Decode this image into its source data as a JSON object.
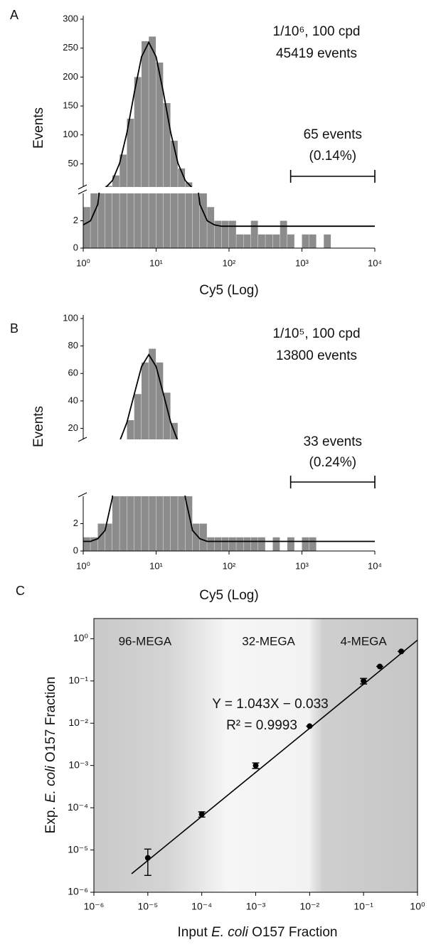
{
  "chart_data": [
    {
      "type": "histogram",
      "panel_label": "A",
      "xlabel": "Cy5 (Log)",
      "ylabel": "Events",
      "annotations": [
        "1/10⁶, 100 cpd",
        "45419 events"
      ],
      "gate": {
        "range": [
          700,
          10000
        ],
        "labels": [
          "65 events",
          "(0.14%)"
        ]
      },
      "xscale": "log",
      "xlim": [
        1,
        10000
      ],
      "xticks": [
        {
          "value": 1,
          "label": "10⁰"
        },
        {
          "value": 10,
          "label": "10¹"
        },
        {
          "value": 100,
          "label": "10²"
        },
        {
          "value": 1000,
          "label": "10³"
        },
        {
          "value": 10000,
          "label": "10⁴"
        }
      ],
      "ylim": [
        0,
        300
      ],
      "y_break": [
        4,
        10
      ],
      "yticks": [
        0,
        2,
        50,
        100,
        150,
        200,
        250,
        300
      ],
      "color": "#8c8c8c",
      "bins": [
        1,
        1.259,
        1.585,
        1.995,
        2.512,
        3.162,
        3.981,
        5.012,
        6.31,
        7.943,
        10,
        12.59,
        15.85,
        19.95,
        25.12,
        31.62,
        39.81,
        50.12,
        63.1,
        79.43,
        100,
        125.9,
        158.5,
        199.5,
        251.2,
        316.2,
        398.1,
        501.2,
        631,
        794.3,
        1000,
        1259,
        1585,
        1995,
        2512,
        3162,
        3981,
        5012,
        6310,
        7943,
        10000
      ],
      "counts": [
        3,
        4,
        6,
        12,
        30,
        66,
        128,
        200,
        262,
        270,
        225,
        155,
        90,
        42,
        18,
        8,
        4,
        3,
        2,
        2,
        2,
        1,
        1,
        2,
        1,
        1,
        1,
        2,
        1,
        0,
        1,
        1,
        0,
        1,
        0,
        0,
        0,
        0,
        0,
        0
      ],
      "fit": {
        "color": "#000000",
        "values": [
          1.7,
          2.0,
          3.2,
          7.9,
          21,
          51,
          104,
          173,
          235,
          260,
          235,
          173,
          104,
          51,
          21,
          7.9,
          3.2,
          2.0,
          1.7,
          1.6,
          1.6,
          1.6,
          1.6,
          1.6,
          1.6,
          1.6,
          1.6,
          1.6,
          1.6,
          1.6,
          1.6,
          1.6,
          1.6,
          1.6,
          1.6,
          1.6,
          1.6,
          1.6,
          1.6,
          1.6,
          1.6
        ]
      }
    },
    {
      "type": "histogram",
      "panel_label": "B",
      "xlabel": "Cy5 (Log)",
      "ylabel": "Events",
      "annotations": [
        "1/10⁵, 100 cpd",
        "13800 events"
      ],
      "gate": {
        "range": [
          700,
          10000
        ],
        "labels": [
          "33 events",
          "(0.24%)"
        ]
      },
      "xscale": "log",
      "xlim": [
        1,
        10000
      ],
      "xticks": [
        {
          "value": 1,
          "label": "10⁰"
        },
        {
          "value": 10,
          "label": "10¹"
        },
        {
          "value": 100,
          "label": "10²"
        },
        {
          "value": 1000,
          "label": "10³"
        },
        {
          "value": 10000,
          "label": "10⁴"
        }
      ],
      "ylim": [
        0,
        100
      ],
      "y_break": [
        4,
        12
      ],
      "yticks": [
        0,
        2,
        20,
        40,
        60,
        80,
        100
      ],
      "color": "#8c8c8c",
      "bins": [
        1,
        1.259,
        1.585,
        1.995,
        2.512,
        3.162,
        3.981,
        5.012,
        6.31,
        7.943,
        10,
        12.59,
        15.85,
        19.95,
        25.12,
        31.62,
        39.81,
        50.12,
        63.1,
        79.43,
        100,
        125.9,
        158.5,
        199.5,
        251.2,
        316.2,
        398.1,
        501.2,
        631,
        794.3,
        1000,
        1259,
        1585,
        1995,
        2512,
        3162,
        3981,
        5012,
        6310,
        7943,
        10000
      ],
      "counts": [
        1,
        1,
        2,
        2,
        5,
        12,
        26,
        45,
        68,
        78,
        68,
        46,
        24,
        10,
        4,
        2,
        2,
        1,
        1,
        1,
        1,
        1,
        1,
        1,
        1,
        0,
        1,
        0,
        1,
        0,
        1,
        1,
        0,
        0,
        0,
        0,
        0,
        0,
        0,
        0
      ],
      "fit": {
        "color": "#000000",
        "values": [
          0.7,
          0.7,
          0.9,
          1.5,
          3.9,
          10.6,
          24.4,
          45,
          65,
          73.7,
          65,
          45,
          24.4,
          10.6,
          3.9,
          1.5,
          0.9,
          0.7,
          0.7,
          0.7,
          0.7,
          0.7,
          0.7,
          0.7,
          0.7,
          0.7,
          0.7,
          0.7,
          0.7,
          0.7,
          0.7,
          0.7,
          0.7,
          0.7,
          0.7,
          0.7,
          0.7,
          0.7,
          0.7,
          0.7,
          0.7
        ]
      }
    },
    {
      "type": "scatter",
      "panel_label": "C",
      "xlabel": [
        "Input ",
        "E. coli",
        " O157 Fraction"
      ],
      "ylabel": [
        "Exp. ",
        "E. coli",
        " O157 Fraction"
      ],
      "xscale": "log",
      "yscale": "log",
      "xlim": [
        1e-06,
        1
      ],
      "ylim": [
        1e-06,
        3
      ],
      "xticks": [
        {
          "value": 1e-06,
          "label": "10⁻⁶"
        },
        {
          "value": 1e-05,
          "label": "10⁻⁵"
        },
        {
          "value": 0.0001,
          "label": "10⁻⁴"
        },
        {
          "value": 0.001,
          "label": "10⁻³"
        },
        {
          "value": 0.01,
          "label": "10⁻²"
        },
        {
          "value": 0.1,
          "label": "10⁻¹"
        },
        {
          "value": 1,
          "label": "10⁰"
        }
      ],
      "yticks": [
        {
          "value": 1e-06,
          "label": "10⁻⁶"
        },
        {
          "value": 1e-05,
          "label": "10⁻⁵"
        },
        {
          "value": 0.0001,
          "label": "10⁻⁴"
        },
        {
          "value": 0.001,
          "label": "10⁻³"
        },
        {
          "value": 0.01,
          "label": "10⁻²"
        },
        {
          "value": 0.1,
          "label": "10⁻¹"
        },
        {
          "value": 1,
          "label": "10⁰"
        }
      ],
      "regions": [
        {
          "label": "96-MEGA",
          "range": [
            1e-06,
            0.0003
          ]
        },
        {
          "label": "32-MEGA",
          "range": [
            0.0003,
            0.01
          ]
        },
        {
          "label": "4-MEGA",
          "range": [
            0.01,
            1
          ]
        }
      ],
      "x": [
        1e-05,
        0.0001,
        0.001,
        0.01,
        0.1,
        0.2,
        0.5
      ],
      "values": [
        6.5e-06,
        7e-05,
        0.001,
        0.0085,
        0.1,
        0.22,
        0.5
      ],
      "errors": [
        4e-06,
        1e-05,
        0.00015,
        0,
        0.015,
        0,
        0
      ],
      "color": "#000000",
      "fit_line": {
        "x": [
          5e-06,
          1
        ],
        "values": [
          2.74e-06,
          0.927
        ]
      },
      "annotations": [
        "Y = 1.043X − 0.033",
        "R² = 0.9993"
      ]
    }
  ]
}
